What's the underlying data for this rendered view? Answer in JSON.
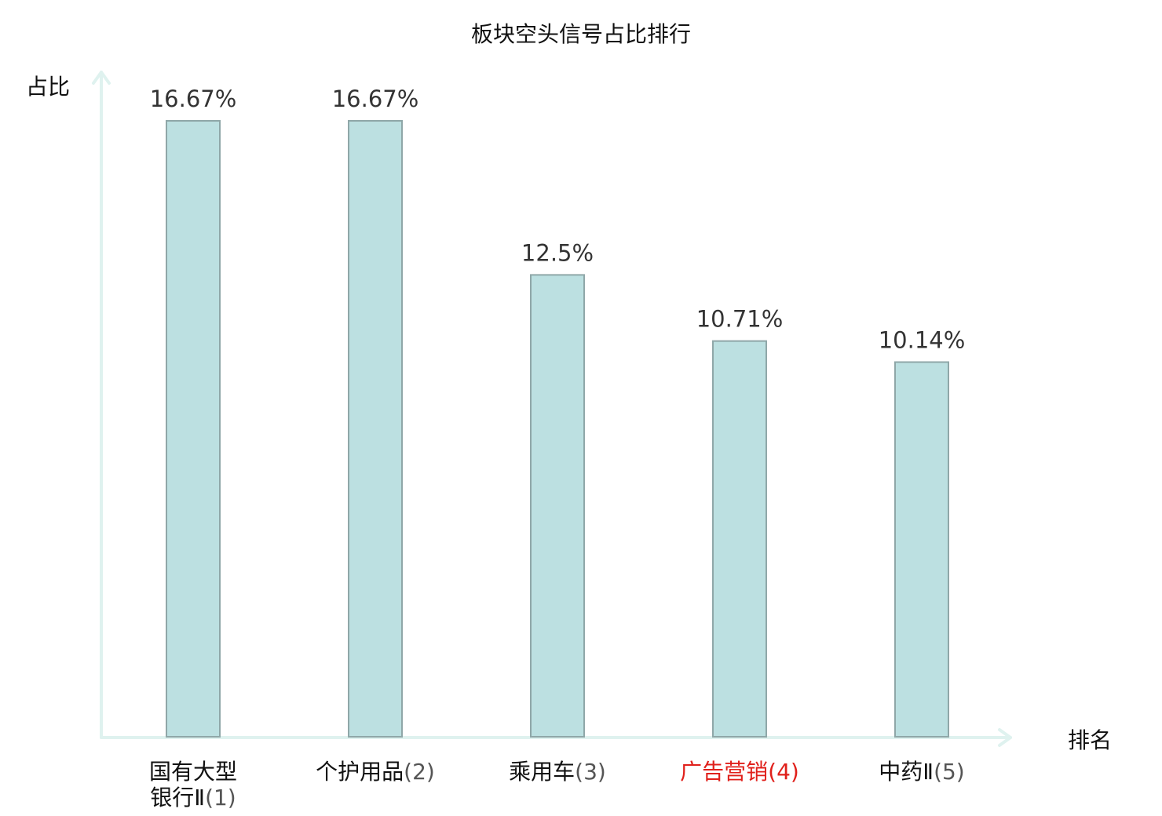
{
  "chart_data": {
    "type": "bar",
    "title": "板块空头信号占比排行",
    "ylabel": "占比",
    "xlabel": "排名",
    "categories": [
      {
        "name": "国有大型银行Ⅱ",
        "rank": "(1)",
        "highlight": false
      },
      {
        "name": "个护用品",
        "rank": "(2)",
        "highlight": false
      },
      {
        "name": "乘用车",
        "rank": "(3)",
        "highlight": false
      },
      {
        "name": "广告营销",
        "rank": "(4)",
        "highlight": true
      },
      {
        "name": "中药Ⅱ",
        "rank": "(5)",
        "highlight": false
      }
    ],
    "values": [
      16.67,
      16.67,
      12.5,
      10.71,
      10.14
    ],
    "value_labels": [
      "16.67%",
      "16.67%",
      "12.5%",
      "10.71%",
      "10.14%"
    ],
    "ylim": [
      0,
      16.67
    ],
    "grid": false,
    "legend": "none"
  },
  "colors": {
    "bar_fill": "#bce0e1",
    "bar_stroke": "#8fa7a8",
    "axis": "#dff2ef",
    "highlight_text": "#e0201b",
    "text": "#111111"
  }
}
